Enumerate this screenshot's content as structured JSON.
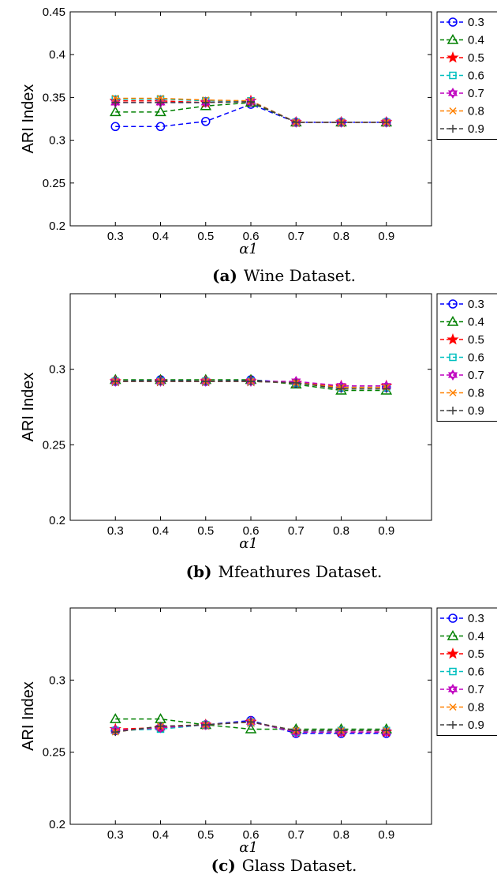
{
  "chart_data": [
    {
      "type": "line",
      "caption_label": "(a)",
      "caption_text": "Wine Dataset.",
      "xlabel": "α1",
      "ylabel": "ARI Index",
      "x": [
        0.3,
        0.4,
        0.5,
        0.6,
        0.7,
        0.8,
        0.9
      ],
      "xticks": [
        "0.3",
        "0.4",
        "0.5",
        "0.6",
        "0.7",
        "0.8",
        "0.9"
      ],
      "xlim": [
        0.2,
        1.0
      ],
      "ylim": [
        0.2,
        0.45
      ],
      "yticks": [
        0.2,
        0.25,
        0.3,
        0.35,
        0.4,
        0.45
      ],
      "ytick_labels": [
        "0.2",
        "0.25",
        "0.3",
        "0.35",
        "0.4",
        "0.45"
      ],
      "legend_position": "top-right",
      "series": [
        {
          "name": "0.3",
          "values": [
            0.316,
            0.316,
            0.322,
            0.342,
            0.321,
            0.321,
            0.321
          ]
        },
        {
          "name": "0.4",
          "values": [
            0.333,
            0.333,
            0.34,
            0.344,
            0.321,
            0.321,
            0.321
          ]
        },
        {
          "name": "0.5",
          "values": [
            0.346,
            0.346,
            0.344,
            0.346,
            0.321,
            0.321,
            0.321
          ]
        },
        {
          "name": "0.6",
          "values": [
            0.348,
            0.348,
            0.346,
            0.346,
            0.321,
            0.321,
            0.321
          ]
        },
        {
          "name": "0.7",
          "values": [
            0.344,
            0.344,
            0.344,
            0.345,
            0.321,
            0.321,
            0.321
          ]
        },
        {
          "name": "0.8",
          "values": [
            0.349,
            0.349,
            0.347,
            0.346,
            0.321,
            0.321,
            0.321
          ]
        },
        {
          "name": "0.9",
          "values": [
            0.344,
            0.344,
            0.344,
            0.345,
            0.321,
            0.321,
            0.321
          ]
        }
      ]
    },
    {
      "type": "line",
      "caption_label": "(b)",
      "caption_text": "Mfeathures Dataset.",
      "xlabel": "α1",
      "ylabel": "ARI Index",
      "x": [
        0.3,
        0.4,
        0.5,
        0.6,
        0.7,
        0.8,
        0.9
      ],
      "xticks": [
        "0.3",
        "0.4",
        "0.5",
        "0.6",
        "0.7",
        "0.8",
        "0.9"
      ],
      "xlim": [
        0.2,
        1.0
      ],
      "ylim": [
        0.2,
        0.35
      ],
      "yticks": [
        0.2,
        0.25,
        0.3
      ],
      "ytick_labels": [
        "0.2",
        "0.25",
        "0.3"
      ],
      "legend_position": "top-right",
      "series": [
        {
          "name": "0.3",
          "values": [
            0.292,
            0.293,
            0.292,
            0.293,
            0.291,
            0.288,
            0.288
          ]
        },
        {
          "name": "0.4",
          "values": [
            0.293,
            0.293,
            0.293,
            0.293,
            0.29,
            0.286,
            0.286
          ]
        },
        {
          "name": "0.5",
          "values": [
            0.292,
            0.292,
            0.292,
            0.292,
            0.291,
            0.289,
            0.289
          ]
        },
        {
          "name": "0.6",
          "values": [
            0.292,
            0.292,
            0.292,
            0.292,
            0.291,
            0.288,
            0.288
          ]
        },
        {
          "name": "0.7",
          "values": [
            0.292,
            0.292,
            0.292,
            0.292,
            0.292,
            0.289,
            0.289
          ]
        },
        {
          "name": "0.8",
          "values": [
            0.292,
            0.292,
            0.292,
            0.292,
            0.291,
            0.288,
            0.288
          ]
        },
        {
          "name": "0.9",
          "values": [
            0.292,
            0.292,
            0.292,
            0.292,
            0.291,
            0.287,
            0.287
          ]
        }
      ]
    },
    {
      "type": "line",
      "caption_label": "(c)",
      "caption_text": "Glass Dataset.",
      "xlabel": "α1",
      "ylabel": "ARI Index",
      "x": [
        0.3,
        0.4,
        0.5,
        0.6,
        0.7,
        0.8,
        0.9
      ],
      "xticks": [
        "0.3",
        "0.4",
        "0.5",
        "0.6",
        "0.7",
        "0.8",
        "0.9"
      ],
      "xlim": [
        0.2,
        1.0
      ],
      "ylim": [
        0.2,
        0.35
      ],
      "yticks": [
        0.2,
        0.25,
        0.3
      ],
      "ytick_labels": [
        "0.2",
        "0.25",
        "0.3"
      ],
      "legend_position": "top-right",
      "series": [
        {
          "name": "0.3",
          "values": [
            0.265,
            0.267,
            0.269,
            0.272,
            0.263,
            0.263,
            0.263
          ]
        },
        {
          "name": "0.4",
          "values": [
            0.273,
            0.273,
            0.269,
            0.266,
            0.266,
            0.266,
            0.266
          ]
        },
        {
          "name": "0.5",
          "values": [
            0.266,
            0.267,
            0.269,
            0.271,
            0.264,
            0.264,
            0.264
          ]
        },
        {
          "name": "0.6",
          "values": [
            0.265,
            0.266,
            0.269,
            0.271,
            0.264,
            0.265,
            0.265
          ]
        },
        {
          "name": "0.7",
          "values": [
            0.265,
            0.267,
            0.269,
            0.271,
            0.264,
            0.264,
            0.264
          ]
        },
        {
          "name": "0.8",
          "values": [
            0.264,
            0.268,
            0.269,
            0.271,
            0.265,
            0.265,
            0.265
          ]
        },
        {
          "name": "0.9",
          "values": [
            0.264,
            0.268,
            0.269,
            0.271,
            0.265,
            0.265,
            0.265
          ]
        }
      ]
    }
  ],
  "series_styles": [
    {
      "color": "#0000ff",
      "marker": "circle"
    },
    {
      "color": "#008000",
      "marker": "triangle"
    },
    {
      "color": "#ff0000",
      "marker": "star"
    },
    {
      "color": "#00bfbf",
      "marker": "square"
    },
    {
      "color": "#bf00bf",
      "marker": "hexagram"
    },
    {
      "color": "#ff8000",
      "marker": "x"
    },
    {
      "color": "#404040",
      "marker": "plus"
    }
  ]
}
